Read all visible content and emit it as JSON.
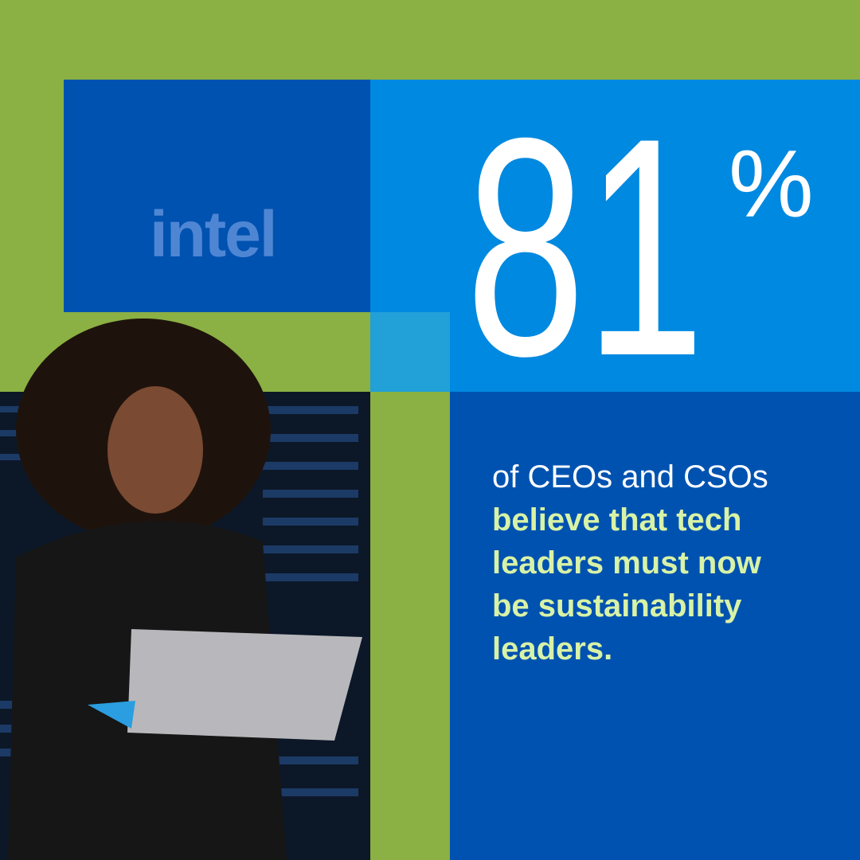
{
  "logo": "intel",
  "stat": {
    "value": 81,
    "unit": "%"
  },
  "description": {
    "lead": "of CEOs and CSOs",
    "highlight": [
      "believe that tech",
      "leaders must now",
      "be sustainability",
      "leaders."
    ]
  }
}
